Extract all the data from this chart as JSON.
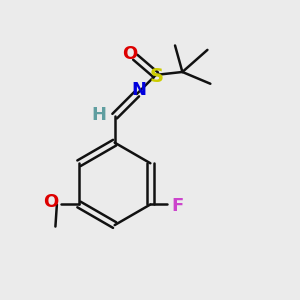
{
  "bg_color": "#ebebeb",
  "atom_colors": {
    "C": "#000000",
    "H": "#5f9ea0",
    "N": "#0000dd",
    "O": "#dd0000",
    "S": "#cccc00",
    "F": "#cc44cc",
    "OMe_O": "#dd0000"
  },
  "bond_color": "#111111",
  "bond_width": 1.8,
  "font_size_atom": 13
}
